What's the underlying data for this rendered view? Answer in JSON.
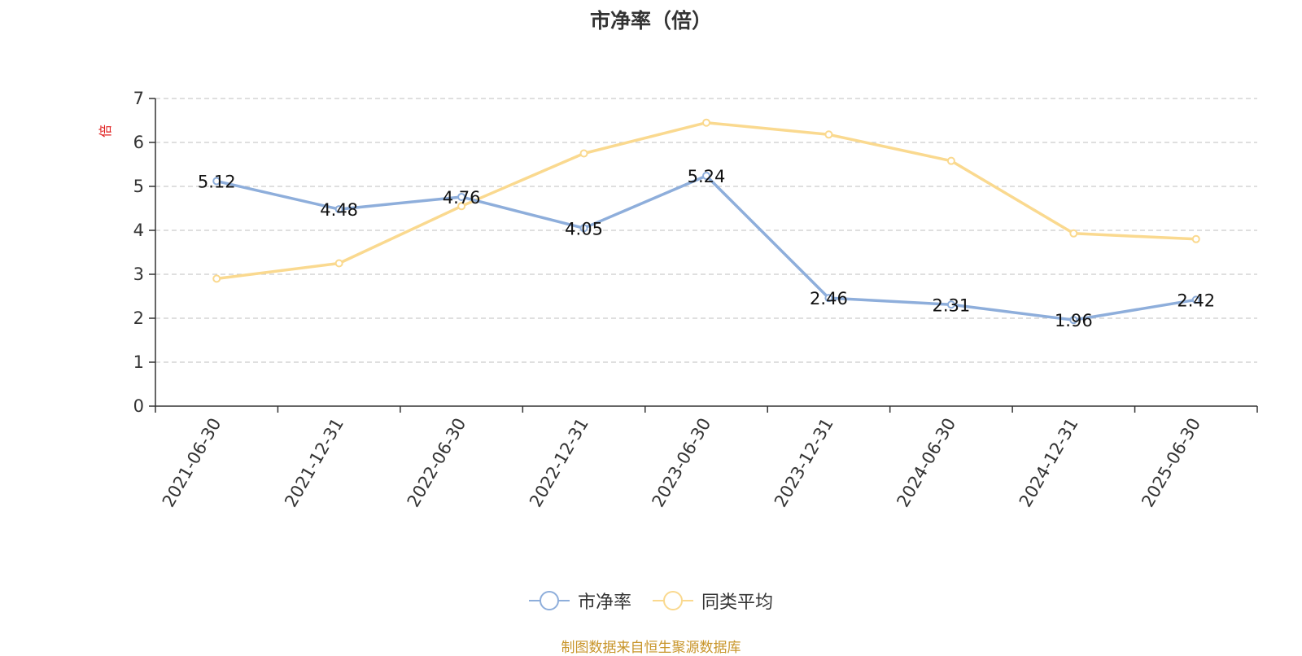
{
  "chart_data": {
    "type": "line",
    "title": "市净率（倍）",
    "ylabel": "倍",
    "ylim": [
      0,
      7
    ],
    "yticks": [
      0,
      1,
      2,
      3,
      4,
      5,
      6,
      7
    ],
    "grid": true,
    "legend_position": "bottom",
    "categories": [
      "2021-06-30",
      "2021-12-31",
      "2022-06-30",
      "2022-12-31",
      "2023-06-30",
      "2023-12-31",
      "2024-06-30",
      "2024-12-31",
      "2025-06-30"
    ],
    "series": [
      {
        "name": "市净率",
        "color": "#8eaedb",
        "show_labels": true,
        "values": [
          5.12,
          4.48,
          4.76,
          4.05,
          5.24,
          2.46,
          2.31,
          1.96,
          2.42
        ]
      },
      {
        "name": "同类平均",
        "color": "#fad98f",
        "show_labels": false,
        "values": [
          2.9,
          3.25,
          4.55,
          5.75,
          6.45,
          6.18,
          5.58,
          3.93,
          3.8
        ]
      }
    ]
  },
  "source_note": "制图数据来自恒生聚源数据库"
}
